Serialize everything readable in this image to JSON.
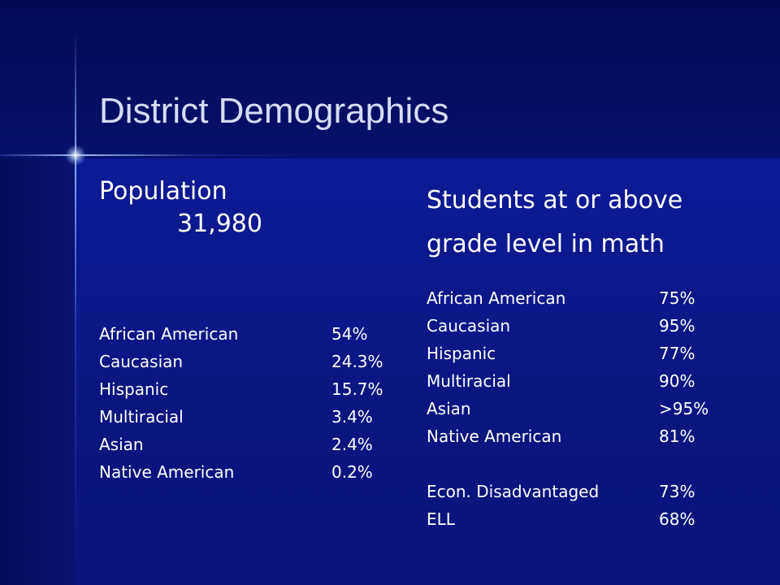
{
  "slide": {
    "title": "District Demographics"
  },
  "population": {
    "label": "Population",
    "value": "31,980",
    "items": [
      {
        "label": "African American",
        "value": "54%"
      },
      {
        "label": "Caucasian",
        "value": "24.3%"
      },
      {
        "label": "Hispanic",
        "value": "15.7%"
      },
      {
        "label": "Multiracial",
        "value": "3.4%"
      },
      {
        "label": "Asian",
        "value": "2.4%"
      },
      {
        "label": "Native American",
        "value": "0.2%"
      }
    ]
  },
  "math": {
    "heading_line1": "Students at or above",
    "heading_line2": "grade level in math",
    "items": [
      {
        "label": "African American",
        "value": "75%"
      },
      {
        "label": "Caucasian",
        "value": "95%"
      },
      {
        "label": "Hispanic",
        "value": "77%"
      },
      {
        "label": "Multiracial",
        "value": "90%"
      },
      {
        "label": "Asian",
        "value": ">95%"
      },
      {
        "label": "Native American",
        "value": "81%"
      },
      {
        "label": "Econ. Disadvantaged",
        "value": "73%"
      },
      {
        "label": "ELL",
        "value": "68%"
      }
    ]
  }
}
